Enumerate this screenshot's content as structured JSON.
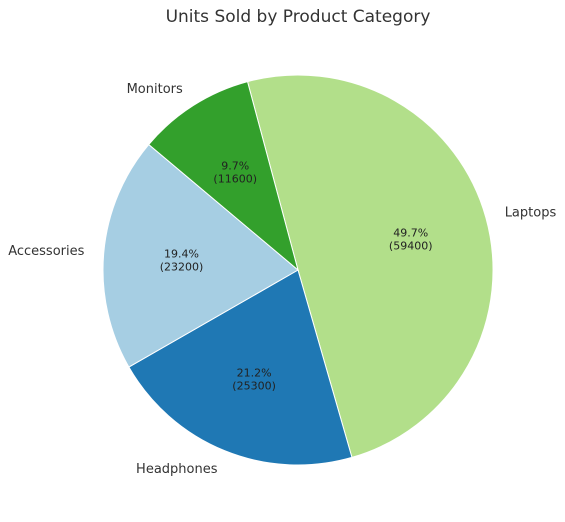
{
  "chart_data": {
    "type": "pie",
    "title": "Units Sold by Product Category",
    "categories": [
      "Laptops",
      "Headphones",
      "Accessories",
      "Monitors"
    ],
    "values": [
      59400,
      25300,
      23200,
      11600
    ],
    "percent_labels": [
      "49.7%",
      "21.2%",
      "19.4%",
      "9.7%"
    ],
    "value_labels": [
      "(59400)",
      "(25300)",
      "(23200)",
      "(11600)"
    ],
    "colors": [
      "#b2df8a",
      "#1f78b4",
      "#a6cee3",
      "#33a02c"
    ],
    "start_angle_deg": 105,
    "direction": "clockwise"
  }
}
